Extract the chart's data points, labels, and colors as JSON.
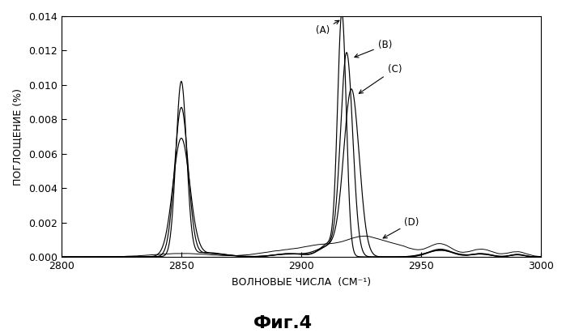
{
  "title": "Фиг.4",
  "xlabel": "ВОЛНОВЫЕ ЧИСЛА  (СМ⁻¹)",
  "ylabel": "ПОГЛОЩЕНИЕ (%)",
  "xlim": [
    2800,
    3000
  ],
  "ylim": [
    0,
    0.014
  ],
  "yticks": [
    0,
    0.002,
    0.004,
    0.006,
    0.008,
    0.01,
    0.012,
    0.014
  ],
  "xticks": [
    2800,
    2850,
    2900,
    2950,
    3000
  ],
  "background_color": "#ffffff"
}
